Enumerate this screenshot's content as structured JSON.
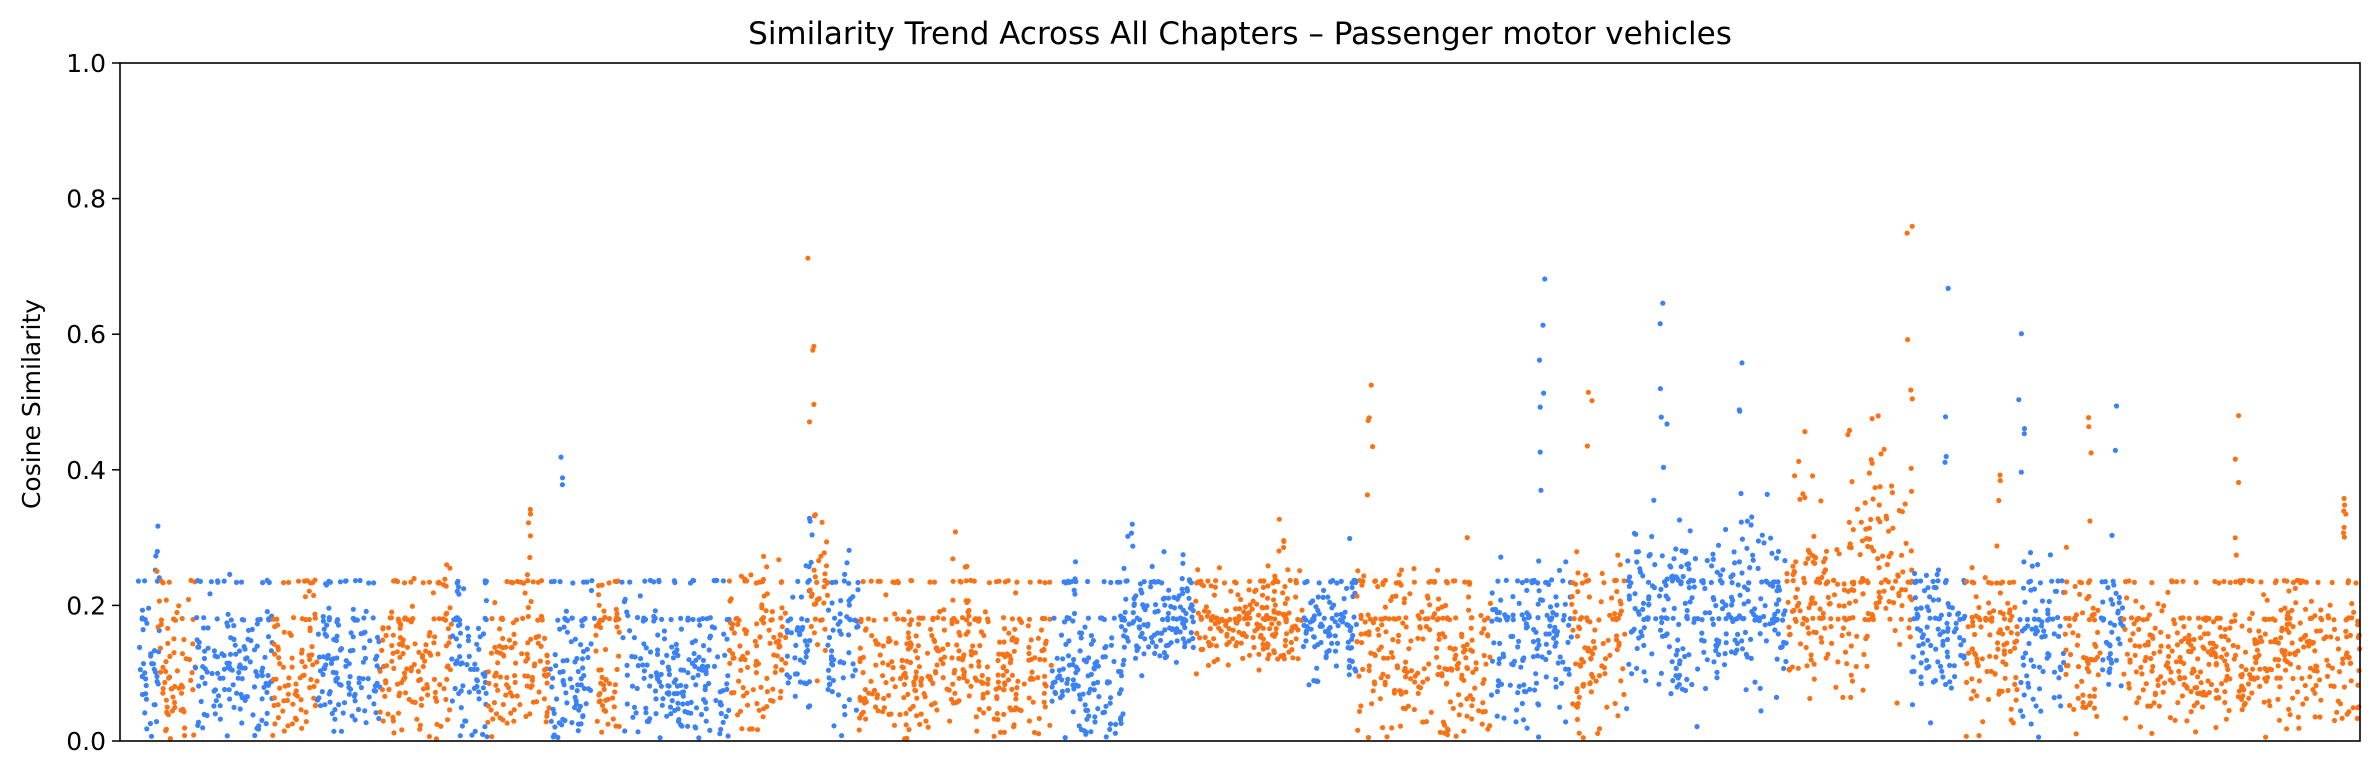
{
  "chart_data": {
    "type": "scatter",
    "title": "Similarity Trend Across All Chapters – Passenger motor vehicles",
    "xlabel": "",
    "ylabel": "Cosine Similarity",
    "ylim": [
      0.0,
      1.0
    ],
    "yticks": [
      "0.0",
      "0.2",
      "0.4",
      "0.6",
      "0.8",
      "1.0"
    ],
    "xticks_visible": false,
    "grid": false,
    "legend": "none",
    "colors": [
      "#3b82f6",
      "#f97316"
    ],
    "reference_levels": [
      0.235,
      0.18
    ],
    "segments": [
      {
        "x0": 0.01,
        "x1": 0.022,
        "c": 0,
        "center": 0.09,
        "spread": 0.08,
        "max": 0.38
      },
      {
        "x0": 0.022,
        "x1": 0.042,
        "c": 1,
        "center": 0.1,
        "spread": 0.09,
        "max": 0.26
      },
      {
        "x0": 0.042,
        "x1": 0.085,
        "c": 0,
        "center": 0.09,
        "spread": 0.08,
        "max": 0.27
      },
      {
        "x0": 0.085,
        "x1": 0.11,
        "c": 1,
        "center": 0.09,
        "spread": 0.08,
        "max": 0.24
      },
      {
        "x0": 0.11,
        "x1": 0.145,
        "c": 0,
        "center": 0.1,
        "spread": 0.08,
        "max": 0.25
      },
      {
        "x0": 0.145,
        "x1": 0.185,
        "c": 1,
        "center": 0.11,
        "spread": 0.09,
        "max": 0.29
      },
      {
        "x0": 0.185,
        "x1": 0.205,
        "c": 0,
        "center": 0.09,
        "spread": 0.08,
        "max": 0.23
      },
      {
        "x0": 0.205,
        "x1": 0.24,
        "c": 1,
        "center": 0.1,
        "spread": 0.09,
        "max": 0.36
      },
      {
        "x0": 0.24,
        "x1": 0.265,
        "c": 0,
        "center": 0.1,
        "spread": 0.08,
        "max": 0.43
      },
      {
        "x0": 0.265,
        "x1": 0.28,
        "c": 1,
        "center": 0.11,
        "spread": 0.09,
        "max": 0.24
      },
      {
        "x0": 0.28,
        "x1": 0.34,
        "c": 0,
        "center": 0.09,
        "spread": 0.08,
        "max": 0.27
      },
      {
        "x0": 0.34,
        "x1": 0.372,
        "c": 1,
        "center": 0.12,
        "spread": 0.09,
        "max": 0.29
      },
      {
        "x0": 0.372,
        "x1": 0.385,
        "c": 0,
        "center": 0.13,
        "spread": 0.09,
        "max": 0.33
      },
      {
        "x0": 0.385,
        "x1": 0.395,
        "c": 1,
        "center": 0.25,
        "spread": 0.1,
        "max": 0.72
      },
      {
        "x0": 0.395,
        "x1": 0.412,
        "c": 0,
        "center": 0.13,
        "spread": 0.09,
        "max": 0.3
      },
      {
        "x0": 0.412,
        "x1": 0.47,
        "c": 1,
        "center": 0.1,
        "spread": 0.08,
        "max": 0.34
      },
      {
        "x0": 0.47,
        "x1": 0.52,
        "c": 1,
        "center": 0.1,
        "spread": 0.08,
        "max": 0.28
      },
      {
        "x0": 0.52,
        "x1": 0.56,
        "c": 0,
        "center": 0.09,
        "spread": 0.07,
        "max": 0.27
      },
      {
        "x0": 0.56,
        "x1": 0.6,
        "c": 0,
        "center": 0.18,
        "spread": 0.06,
        "max": 0.34
      },
      {
        "x0": 0.6,
        "x1": 0.66,
        "c": 1,
        "center": 0.18,
        "spread": 0.06,
        "max": 0.35
      },
      {
        "x0": 0.66,
        "x1": 0.69,
        "c": 0,
        "center": 0.16,
        "spread": 0.07,
        "max": 0.3
      },
      {
        "x0": 0.69,
        "x1": 0.74,
        "c": 1,
        "center": 0.13,
        "spread": 0.09,
        "max": 0.6
      },
      {
        "x0": 0.74,
        "x1": 0.765,
        "c": 1,
        "center": 0.09,
        "spread": 0.08,
        "max": 0.33
      },
      {
        "x0": 0.765,
        "x1": 0.81,
        "c": 0,
        "center": 0.14,
        "spread": 0.1,
        "max": 0.69
      },
      {
        "x0": 0.81,
        "x1": 0.84,
        "c": 1,
        "center": 0.13,
        "spread": 0.1,
        "max": 0.66
      },
      {
        "x0": 0.84,
        "x1": 0.905,
        "c": 0,
        "center": 0.2,
        "spread": 0.12,
        "max": 0.69
      },
      {
        "x0": 0.905,
        "x1": 0.93,
        "c": 0,
        "center": 0.2,
        "spread": 0.11,
        "max": 0.56
      },
      {
        "x0": 0.93,
        "x1": 0.96,
        "c": 1,
        "center": 0.2,
        "spread": 0.11,
        "max": 0.49
      },
      {
        "x0": 0.96,
        "x1": 0.975,
        "c": 1,
        "center": 0.22,
        "spread": 0.12,
        "max": 0.47
      },
      {
        "x0": 0.975,
        "x1": 1.0,
        "c": 1,
        "center": 0.28,
        "spread": 0.14,
        "max": 0.78
      },
      {
        "x0": 1.0,
        "x1": 1.03,
        "c": 0,
        "center": 0.16,
        "spread": 0.1,
        "max": 0.71
      },
      {
        "x0": 1.03,
        "x1": 1.06,
        "c": 1,
        "center": 0.14,
        "spread": 0.1,
        "max": 0.49
      },
      {
        "x0": 1.06,
        "x1": 1.085,
        "c": 0,
        "center": 0.15,
        "spread": 0.1,
        "max": 0.65
      },
      {
        "x0": 1.085,
        "x1": 1.105,
        "c": 1,
        "center": 0.14,
        "spread": 0.09,
        "max": 0.51
      },
      {
        "x0": 1.105,
        "x1": 1.118,
        "c": 0,
        "center": 0.16,
        "spread": 0.08,
        "max": 0.5
      },
      {
        "x0": 1.118,
        "x1": 1.19,
        "c": 1,
        "center": 0.11,
        "spread": 0.07,
        "max": 0.52
      },
      {
        "x0": 1.19,
        "x1": 1.25,
        "c": 1,
        "center": 0.12,
        "spread": 0.08,
        "max": 0.36
      }
    ]
  }
}
